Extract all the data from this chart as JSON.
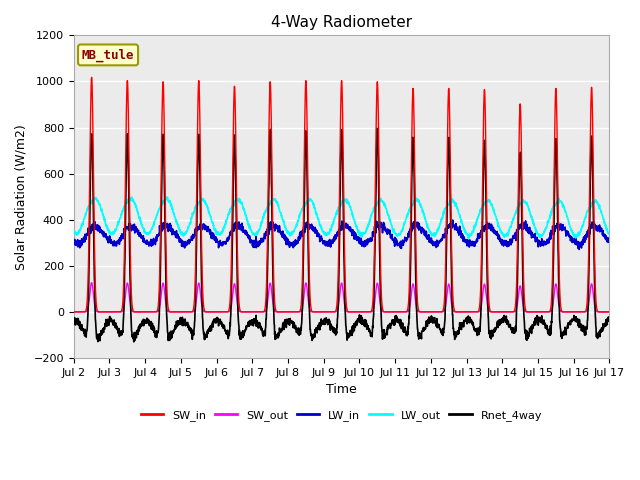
{
  "title": "4-Way Radiometer",
  "xlabel": "Time",
  "ylabel": "Solar Radiation (W/m2)",
  "ylim": [
    -200,
    1200
  ],
  "station_label": "MB_tule",
  "xtick_labels": [
    "Jul 2",
    "Jul 3",
    "Jul 4",
    "Jul 5",
    "Jul 6",
    "Jul 7",
    "Jul 8",
    "Jul 9",
    "Jul 10",
    "Jul 11",
    "Jul 12",
    "Jul 13",
    "Jul 14",
    "Jul 15",
    "Jul 16",
    "Jul 17"
  ],
  "legend": [
    {
      "label": "SW_in",
      "color": "#FF0000"
    },
    {
      "label": "SW_out",
      "color": "#FF00FF"
    },
    {
      "label": "LW_in",
      "color": "#0000CC"
    },
    {
      "label": "LW_out",
      "color": "#00FFFF"
    },
    {
      "label": "Rnet_4way",
      "color": "#000000"
    }
  ],
  "background_color": "#FFFFFF",
  "plot_bg": "#EBEBEB",
  "grid_color": "#FFFFFF",
  "yticks": [
    -200,
    0,
    200,
    400,
    600,
    800,
    1000,
    1200
  ],
  "n_days": 15,
  "points_per_day": 144,
  "sw_in_peak_amps": [
    1060,
    1045,
    1040,
    1045,
    1020,
    1040,
    1045,
    1045,
    1040,
    1010,
    1010,
    1005,
    940,
    1010,
    1015
  ],
  "lw_out_base": 420,
  "lw_out_amp": 80,
  "lw_in_base": 330,
  "lw_in_amp": 35
}
